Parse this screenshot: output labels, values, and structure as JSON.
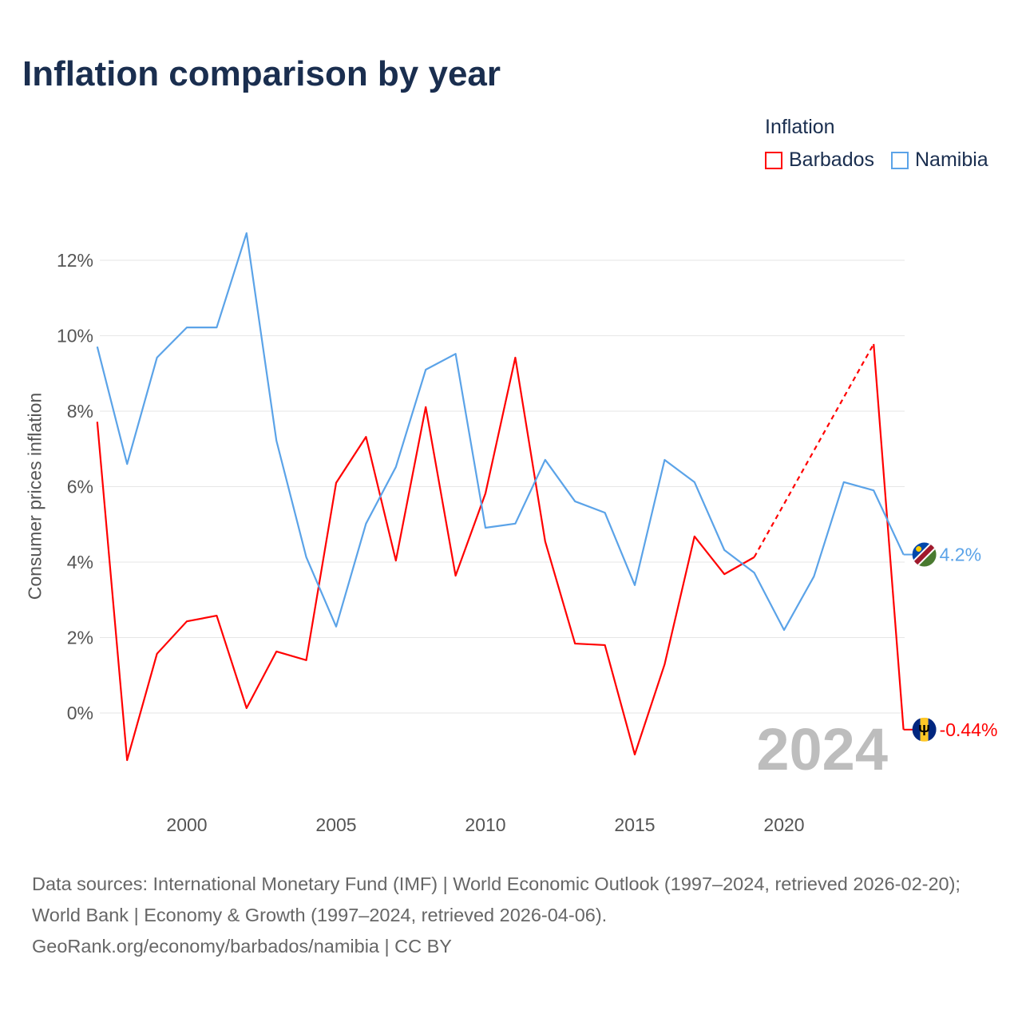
{
  "title": "Inflation comparison by year",
  "legend": {
    "title": "Inflation",
    "items": [
      {
        "name": "Barbados",
        "color": "#ff0000"
      },
      {
        "name": "Namibia",
        "color": "#5ba3e8"
      }
    ]
  },
  "source_lines": [
    "Data sources: International Monetary Fund (IMF) | World Economic Outlook (1997–2024, retrieved 2026-02-20); World Bank | Economy & Growth (1997–2024, retrieved 2026-04-06).",
    "GeoRank.org/economy/barbados/namibia | CC BY"
  ],
  "watermark_year": "2024",
  "chart_data": {
    "type": "line",
    "ylabel": "Consumer prices inflation",
    "xlim": [
      1997,
      2024
    ],
    "ylim": [
      -2.5,
      13.5
    ],
    "yticks": [
      0,
      2,
      4,
      6,
      8,
      10,
      12
    ],
    "ytick_labels": [
      "0%",
      "2%",
      "4%",
      "6%",
      "8%",
      "10%",
      "12%"
    ],
    "xticks": [
      2000,
      2005,
      2010,
      2015,
      2020
    ],
    "xtick_labels": [
      "2000",
      "2005",
      "2010",
      "2015",
      "2020"
    ],
    "grid": true,
    "x": [
      1997,
      1998,
      1999,
      2000,
      2001,
      2002,
      2003,
      2004,
      2005,
      2006,
      2007,
      2008,
      2009,
      2010,
      2011,
      2012,
      2013,
      2014,
      2015,
      2016,
      2017,
      2018,
      2019,
      2020,
      2021,
      2022,
      2023,
      2024
    ],
    "series": [
      {
        "name": "Barbados",
        "color": "#ff0000",
        "end_label": "-0.44%",
        "values": [
          7.72,
          -1.25,
          1.57,
          2.43,
          2.58,
          0.13,
          1.63,
          1.4,
          6.1,
          7.32,
          4.04,
          8.11,
          3.64,
          5.82,
          9.42,
          4.55,
          1.84,
          1.8,
          -1.1,
          1.29,
          4.68,
          3.68,
          4.13,
          null,
          null,
          null,
          9.78,
          -0.44
        ]
      },
      {
        "name": "Namibia",
        "color": "#5ba3e8",
        "end_label": "4.2%",
        "values": [
          9.71,
          6.6,
          9.42,
          10.22,
          10.22,
          12.72,
          7.22,
          4.13,
          2.29,
          5.02,
          6.52,
          9.1,
          9.52,
          4.91,
          5.02,
          6.71,
          5.61,
          5.31,
          3.39,
          6.71,
          6.12,
          4.32,
          3.72,
          2.2,
          3.62,
          6.12,
          5.9,
          4.2
        ]
      }
    ]
  }
}
